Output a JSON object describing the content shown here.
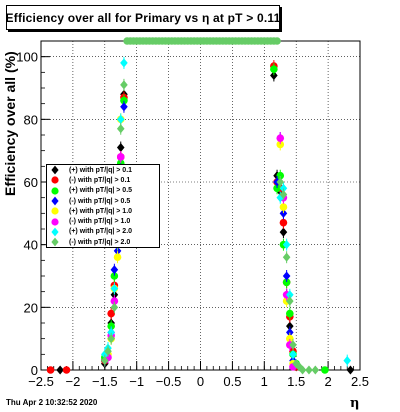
{
  "title": "Efficiency over all for Primary vs   η at pT > 0.11",
  "footer": "Thu Apr  2 10:32:52 2020",
  "chart_data": {
    "type": "scatter",
    "xlabel": "η",
    "ylabel": "Efficiency over all (%)",
    "xlim": [
      -2.5,
      2.5
    ],
    "ylim": [
      0,
      105
    ],
    "xticks": [
      "−2.5",
      "−2",
      "−1.5",
      "−1",
      "−0.5",
      "0",
      "0.5",
      "1",
      "1.5",
      "2",
      "2.5"
    ],
    "yticks": [
      "0",
      "20",
      "40",
      "60",
      "80",
      "100"
    ],
    "grid": true,
    "legend_position": "left",
    "series": [
      {
        "name": "(+) with pT/|q| > 0.1",
        "color": "#000000",
        "marker": "diamond",
        "x": [
          -2.2,
          -1.5,
          -1.4,
          -1.35,
          -1.3,
          -1.25,
          -1.2,
          1.15,
          1.2,
          1.25,
          1.3,
          1.35,
          1.4,
          1.45,
          1.5,
          2.35
        ],
        "y": [
          0,
          2,
          15,
          24,
          41,
          71,
          88,
          94,
          62,
          57,
          44,
          24,
          14,
          6,
          1,
          0
        ]
      },
      {
        "name": "(-) with pT/|q| > 0.1",
        "color": "#ff0000",
        "marker": "circle",
        "x": [
          -2.35,
          -2.1,
          -1.5,
          -1.4,
          -1.35,
          -1.3,
          -1.25,
          -1.2,
          1.15,
          1.2,
          1.25,
          1.3,
          1.35,
          1.4,
          1.45,
          1.5
        ],
        "y": [
          0,
          0,
          3,
          18,
          27,
          43,
          68,
          87,
          97,
          60,
          58,
          47,
          28,
          17,
          6,
          1
        ]
      },
      {
        "name": "(+) with pT/|q| > 0.5",
        "color": "#00ff00",
        "marker": "circle",
        "x": [
          -1.5,
          -1.4,
          -1.35,
          -1.3,
          -1.25,
          -1.2,
          1.15,
          1.2,
          1.25,
          1.3,
          1.35,
          1.4,
          1.45,
          1.5,
          1.95
        ],
        "y": [
          4,
          14,
          30,
          42,
          66,
          86,
          96,
          58,
          62,
          40,
          28,
          18,
          5,
          2,
          0
        ]
      },
      {
        "name": "(-) with pT/|q| > 0.5",
        "color": "#0000ff",
        "marker": "diamond",
        "x": [
          -1.5,
          -1.4,
          -1.35,
          -1.3,
          -1.25,
          -1.2,
          1.2,
          1.25,
          1.3,
          1.35,
          1.4,
          1.45
        ],
        "y": [
          3,
          12,
          32,
          38,
          64,
          84,
          60,
          74,
          50,
          30,
          12,
          3
        ]
      },
      {
        "name": "(+) with pT/|q| > 1.0",
        "color": "#ffff00",
        "marker": "circle",
        "x": [
          -1.45,
          -1.4,
          -1.35,
          -1.3,
          -1.25,
          1.25,
          1.3,
          1.35,
          1.4,
          1.45
        ],
        "y": [
          5,
          10,
          26,
          36,
          80,
          72,
          52,
          22,
          10,
          2
        ]
      },
      {
        "name": "(-) with pT/|q| > 1.0",
        "color": "#ff00ff",
        "marker": "circle",
        "x": [
          -1.45,
          -1.4,
          -1.35,
          -1.3,
          -1.25,
          1.25,
          1.3,
          1.35,
          1.4,
          1.45
        ],
        "y": [
          4,
          11,
          22,
          42,
          68,
          74,
          55,
          24,
          8,
          1
        ]
      },
      {
        "name": "(+) with pT/|q| > 2.0",
        "color": "#00ffff",
        "marker": "diamond",
        "x": [
          -1.5,
          -1.45,
          -1.4,
          -1.35,
          -1.3,
          -1.25,
          -1.2,
          1.25,
          1.3,
          1.35,
          1.4,
          1.45,
          1.5,
          2.3
        ],
        "y": [
          5,
          7,
          12,
          26,
          44,
          80,
          98,
          55,
          58,
          40,
          24,
          5,
          2,
          3
        ]
      },
      {
        "name": "(-) with pT/|q| > 2.0",
        "color": "#66cc66",
        "marker": "diamond",
        "x": [
          -1.5,
          -1.45,
          -1.4,
          -1.35,
          -1.3,
          -1.25,
          -1.2,
          1.25,
          1.3,
          1.35,
          1.4,
          1.45,
          1.5,
          1.55,
          1.6,
          1.7,
          1.8
        ],
        "y": [
          3,
          6,
          10,
          20,
          40,
          77,
          91,
          60,
          56,
          36,
          22,
          8,
          2,
          1,
          0,
          0,
          0
        ]
      }
    ],
    "saturation_band": {
      "series": "(-) with pT/|q| > 2.0",
      "x_from": -1.15,
      "x_to": 1.2,
      "step": 0.05,
      "y": 105
    }
  }
}
